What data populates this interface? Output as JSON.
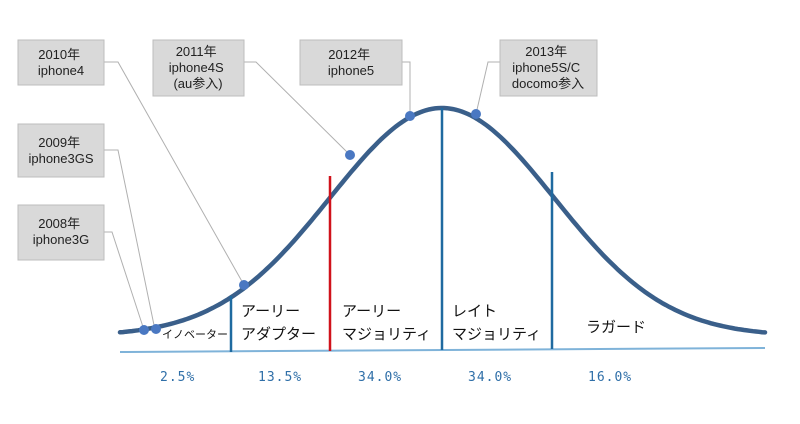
{
  "colors": {
    "curve": "#3a5f8a",
    "marker": "#4a78c2",
    "divider_blue": "#1f6aa0",
    "divider_red": "#d0121b",
    "baseline": "#7fb3d9",
    "callout_fill": "#d9d9d9",
    "callout_border": "#bdbdbd",
    "leader": "#b0b0b0",
    "percent_text": "#2f6fa8"
  },
  "callouts": [
    {
      "id": "2010",
      "lines": [
        "2010年",
        "iphone4"
      ]
    },
    {
      "id": "2011",
      "lines": [
        "2011年",
        "iphone4S",
        "(au参入)"
      ]
    },
    {
      "id": "2012",
      "lines": [
        "2012年",
        "iphone5"
      ]
    },
    {
      "id": "2013",
      "lines": [
        "2013年",
        "iphone5S/C",
        "docomo参入"
      ]
    },
    {
      "id": "2009",
      "lines": [
        "2009年",
        "iphone3GS"
      ]
    },
    {
      "id": "2008",
      "lines": [
        "2008年",
        "iphone3G"
      ]
    }
  ],
  "segments": [
    {
      "id": "innovators",
      "lines": [
        "イノベーター"
      ],
      "percent": "2.5%"
    },
    {
      "id": "early-adopters",
      "lines": [
        "アーリー",
        "アダプター"
      ],
      "percent": "13.5%"
    },
    {
      "id": "early-majority",
      "lines": [
        "アーリー",
        "マジョリティ"
      ],
      "percent": "34.0%"
    },
    {
      "id": "late-majority",
      "lines": [
        "レイト",
        "マジョリティ"
      ],
      "percent": "34.0%"
    },
    {
      "id": "laggards",
      "lines": [
        "ラガード"
      ],
      "percent": "16.0%"
    }
  ],
  "percent_display": [
    "2.5%",
    "13.5%",
    "34.0%",
    "34.0%",
    "16.0%"
  ]
}
